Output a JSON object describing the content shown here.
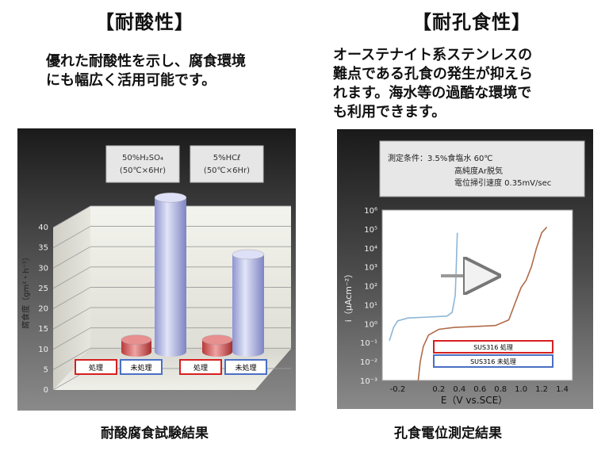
{
  "headings": {
    "acid": "【耐酸性】",
    "pitting": "【耐孔食性】"
  },
  "descriptions": {
    "acid_lines": [
      "優れた耐酸性を示し、腐食環境",
      "にも幅広く活用可能です。"
    ],
    "pitting_lines": [
      "オーステナイト系ステンレスの",
      "難点である孔食の発生が抑えら",
      "れます。海水等の過酷な環境で",
      "も利用できます。"
    ]
  },
  "captions": {
    "acid": "耐酸腐食試験結果",
    "pitting": "孔食電位測定結果"
  },
  "chart_data": [
    {
      "type": "bar",
      "ylabel": "腐食度（gm²・h⁻¹）",
      "ylim": [
        0,
        40
      ],
      "yticks": [
        0,
        5,
        10,
        15,
        20,
        25,
        30,
        35,
        40
      ],
      "groups": [
        {
          "condition": [
            "50%H₂SO₄",
            "(50℃×6Hr)"
          ],
          "treated_label": "処理",
          "treated": 3,
          "untreated_label": "未処理",
          "untreated": 38
        },
        {
          "condition": [
            "5%HCℓ",
            "(50℃×6Hr)"
          ],
          "treated_label": "処理",
          "treated": 3,
          "untreated_label": "未処理",
          "untreated": 24
        }
      ],
      "colors": {
        "treated": "#d04a4a",
        "untreated": "#b8bde8",
        "treated_border": "#d62020",
        "untreated_border": "#4a6fc4"
      }
    },
    {
      "type": "line",
      "conditions": [
        "測定条件：3.5%食塩水 60℃",
        "高純度Ar脱気",
        "電位掃引速度 0.35mV/sec"
      ],
      "xlabel": "E（V vs.SCE）",
      "ylabel": "i（μAcm⁻²）",
      "xlim": [
        -0.35,
        1.5
      ],
      "xticks": [
        "-0.2",
        "0.2",
        "0.4",
        "0.6",
        "0.8",
        "1.0",
        "1.2",
        "1.4"
      ],
      "xtick_values": [
        -0.2,
        0.2,
        0.4,
        0.6,
        0.8,
        1.0,
        1.2,
        1.4
      ],
      "ylim_exp": [
        -3,
        6
      ],
      "yticks": [
        "10⁶",
        "10⁵",
        "10⁴",
        "10³",
        "10²",
        "10¹",
        "10⁰",
        "10⁻¹",
        "10⁻²",
        "10⁻³"
      ],
      "ytick_exps": [
        6,
        5,
        4,
        3,
        2,
        1,
        0,
        -1,
        -2,
        -3
      ],
      "series": [
        {
          "name": "SUS316 処理",
          "color": "#b06c4a",
          "points": [
            [
              0.0,
              -3.0
            ],
            [
              0.02,
              -2.0
            ],
            [
              0.05,
              -1.2
            ],
            [
              0.1,
              -0.6
            ],
            [
              0.2,
              -0.3
            ],
            [
              0.35,
              -0.2
            ],
            [
              0.55,
              -0.15
            ],
            [
              0.75,
              -0.1
            ],
            [
              0.88,
              0.2
            ],
            [
              0.95,
              1.2
            ],
            [
              1.0,
              1.9
            ],
            [
              1.05,
              2.3
            ],
            [
              1.1,
              3.0
            ],
            [
              1.15,
              4.0
            ],
            [
              1.2,
              4.8
            ],
            [
              1.25,
              5.1
            ]
          ]
        },
        {
          "name": "SUS316 未処理",
          "color": "#8cb6d8",
          "points": [
            [
              -0.28,
              -0.9
            ],
            [
              -0.24,
              -0.2
            ],
            [
              -0.2,
              0.15
            ],
            [
              -0.1,
              0.3
            ],
            [
              0.1,
              0.35
            ],
            [
              0.28,
              0.4
            ],
            [
              0.33,
              0.6
            ],
            [
              0.36,
              1.5
            ],
            [
              0.37,
              3.0
            ],
            [
              0.38,
              4.8
            ]
          ]
        }
      ],
      "arrow_label": ""
    }
  ]
}
